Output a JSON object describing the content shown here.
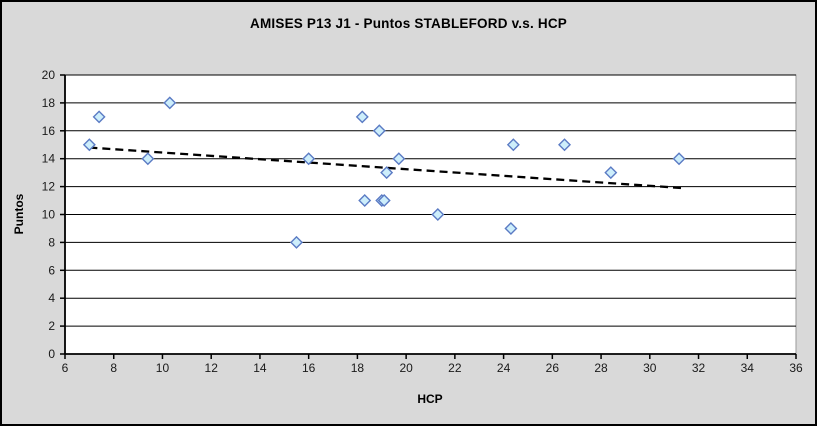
{
  "colors": {
    "frame_background": "#d9d9d9",
    "plot_background": "#ffffff",
    "plot_border": "#9a9a9a",
    "gridline": "#000000",
    "axis": "#000000",
    "tick_label": "#1a1a1a",
    "marker_fill": "#cdeefb",
    "marker_border": "#5b7bc4",
    "trendline": "#000000"
  },
  "chart_data": {
    "type": "scatter",
    "title": "AMISES P13 J1 - Puntos STABLEFORD v.s. HCP",
    "xlabel": "HCP",
    "ylabel": "Puntos",
    "xlim": [
      6,
      36
    ],
    "ylim": [
      0,
      20
    ],
    "x_ticks": [
      6,
      8,
      10,
      12,
      14,
      16,
      18,
      20,
      22,
      24,
      26,
      28,
      30,
      32,
      34,
      36
    ],
    "y_ticks": [
      0,
      2,
      4,
      6,
      8,
      10,
      12,
      14,
      16,
      18,
      20
    ],
    "grid": "horizontal",
    "legend": "none",
    "points": [
      {
        "x": 7.0,
        "y": 15
      },
      {
        "x": 7.4,
        "y": 17
      },
      {
        "x": 9.4,
        "y": 14
      },
      {
        "x": 10.3,
        "y": 18
      },
      {
        "x": 15.5,
        "y": 8
      },
      {
        "x": 16.0,
        "y": 14
      },
      {
        "x": 18.2,
        "y": 17
      },
      {
        "x": 18.3,
        "y": 11
      },
      {
        "x": 18.9,
        "y": 16
      },
      {
        "x": 19.0,
        "y": 11
      },
      {
        "x": 19.1,
        "y": 11
      },
      {
        "x": 19.2,
        "y": 13
      },
      {
        "x": 19.7,
        "y": 14
      },
      {
        "x": 21.3,
        "y": 10
      },
      {
        "x": 24.3,
        "y": 9
      },
      {
        "x": 24.4,
        "y": 15
      },
      {
        "x": 26.5,
        "y": 15
      },
      {
        "x": 28.4,
        "y": 13
      },
      {
        "x": 31.2,
        "y": 14
      }
    ],
    "trendline": {
      "style": "dashed",
      "x1": 7.0,
      "y1": 14.8,
      "x2": 31.3,
      "y2": 11.9
    }
  }
}
